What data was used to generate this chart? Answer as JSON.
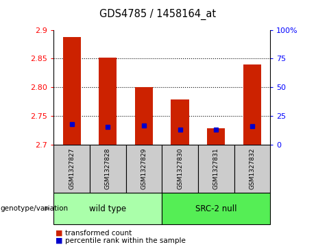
{
  "title": "GDS4785 / 1458164_at",
  "samples": [
    "GSM1327827",
    "GSM1327828",
    "GSM1327829",
    "GSM1327830",
    "GSM1327831",
    "GSM1327832"
  ],
  "group_labels": [
    "wild type",
    "SRC-2 null"
  ],
  "red_values": [
    2.888,
    2.851,
    2.8,
    2.778,
    2.728,
    2.84
  ],
  "blue_values": [
    2.735,
    2.73,
    2.733,
    2.726,
    2.726,
    2.732
  ],
  "y_min": 2.7,
  "y_max": 2.9,
  "y_ticks": [
    2.7,
    2.75,
    2.8,
    2.85,
    2.9
  ],
  "y_tick_labels": [
    "2.7",
    "2.75",
    "2.80",
    "2.85",
    "2.9"
  ],
  "right_y_ticks": [
    0,
    25,
    50,
    75,
    100
  ],
  "right_y_tick_labels": [
    "0",
    "25",
    "50",
    "75",
    "100%"
  ],
  "bar_color": "#cc2200",
  "blue_color": "#0000cc",
  "wild_type_color": "#aaffaa",
  "src2_null_color": "#55ee55",
  "label_box_color": "#cccccc",
  "legend_red_label": "transformed count",
  "legend_blue_label": "percentile rank within the sample",
  "bar_width": 0.5,
  "blue_marker_size": 5,
  "figwidth": 4.61,
  "figheight": 3.63,
  "dpi": 100
}
